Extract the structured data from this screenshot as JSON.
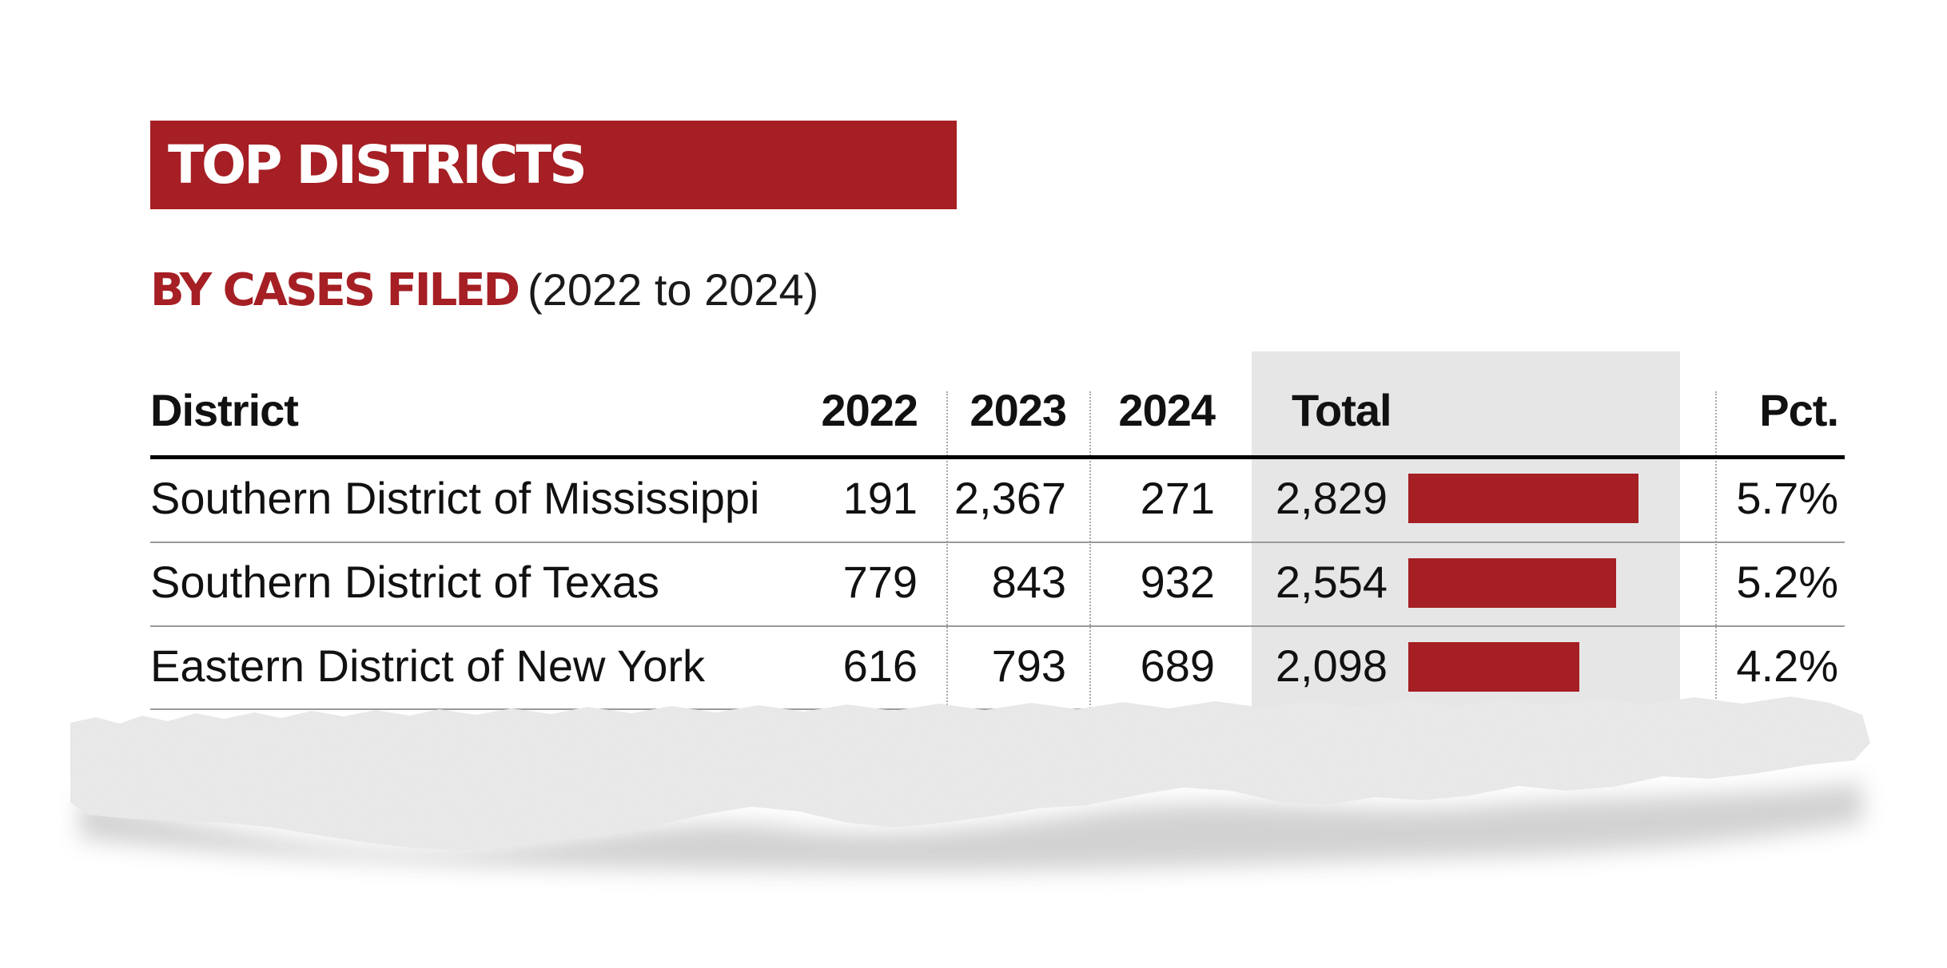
{
  "title": "TOP DISTRICTS",
  "subtitle": {
    "strong": "BY CASES FILED",
    "light": "(2022 to 2024)"
  },
  "colors": {
    "accent": "#a51f24",
    "total_column_bg": "#e6e6e7"
  },
  "chart_data": {
    "type": "table",
    "title": "TOP DISTRICTS",
    "subtitle": "BY CASES FILED (2022 to 2024)",
    "columns": [
      "District",
      "2022",
      "2023",
      "2024",
      "Total",
      "Pct."
    ],
    "rows": [
      {
        "district": "Southern District of Mississippi",
        "y2022": "191",
        "y2023": "2,367",
        "y2024": "271",
        "total": "2,829",
        "total_value": 2829,
        "pct": "5.7%"
      },
      {
        "district": "Southern District of Texas",
        "y2022": "779",
        "y2023": "843",
        "y2024": "932",
        "total": "2,554",
        "total_value": 2554,
        "pct": "5.2%"
      },
      {
        "district": "Eastern District of New York",
        "y2022": "616",
        "y2023": "793",
        "y2024": "689",
        "total": "2,098",
        "total_value": 2098,
        "pct": "4.2%"
      }
    ],
    "bar_max": 2829
  }
}
